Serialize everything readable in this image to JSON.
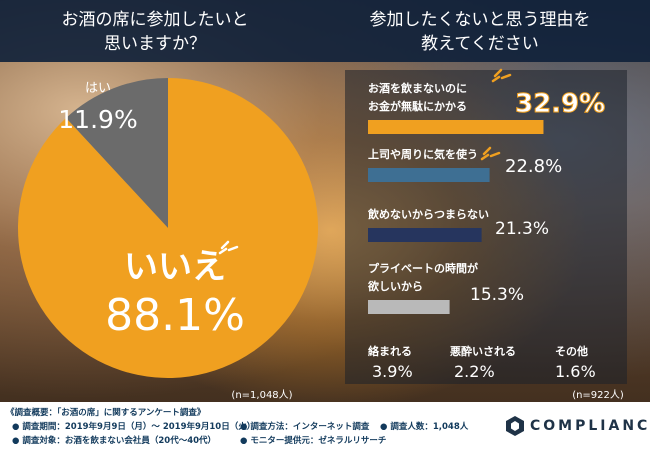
{
  "left_question": [
    "お酒の席に参加したいと",
    "思いますか？"
  ],
  "right_question": [
    "参加したくないと思う理由を",
    "教えてください"
  ],
  "chart_data": [
    {
      "type": "pie",
      "title": "お酒の席に参加したいと思いますか？",
      "sample": "(n=1,048人)",
      "slices": [
        {
          "label": "はい",
          "value": 11.9,
          "display": "11.9%",
          "color": "#6b6b6b"
        },
        {
          "label": "いいえ",
          "value": 88.1,
          "display": "88.1%",
          "color": "#f0a020"
        }
      ]
    },
    {
      "type": "bar",
      "title": "参加したくないと思う理由を教えてください",
      "sample": "(n=922人)",
      "xlim": [
        0,
        40
      ],
      "bars": [
        {
          "label": [
            "お酒を飲まないのに",
            "お金が無駄にかかる"
          ],
          "value": 32.9,
          "display": "32.9%",
          "color": "#f0a020"
        },
        {
          "label": [
            "上司や周りに気を使う"
          ],
          "value": 22.8,
          "display": "22.8%",
          "color": "#3e6f93"
        },
        {
          "label": [
            "飲めないからつまらない"
          ],
          "value": 21.3,
          "display": "21.3%",
          "color": "#26355e"
        },
        {
          "label": [
            "プライベートの時間が",
            "欲しいから"
          ],
          "value": 15.3,
          "display": "15.3%",
          "color": "#b9b9b9"
        }
      ],
      "others": [
        {
          "label": "絡まれる",
          "display": "3.9%"
        },
        {
          "label": "悪酔いされる",
          "display": "2.2%"
        },
        {
          "label": "その他",
          "display": "1.6%"
        }
      ]
    }
  ],
  "footer": {
    "overview": "《調査概要：「お酒の席」に関するアンケート調査》",
    "period": "● 調査期間：2019年9月9日（月）〜 2019年9月10日（火）",
    "target": "● 調査対象：お酒を飲まない会社員（20代〜40代）",
    "method": "● 調査方法：インターネット調査",
    "provider": "● モニター提供元：ゼネラルリサーチ",
    "count": "● 調査人数：1,048人",
    "logo": "COMPLIANCE"
  },
  "colors": {
    "header": "#0e203a",
    "accent": "#f0a020"
  }
}
